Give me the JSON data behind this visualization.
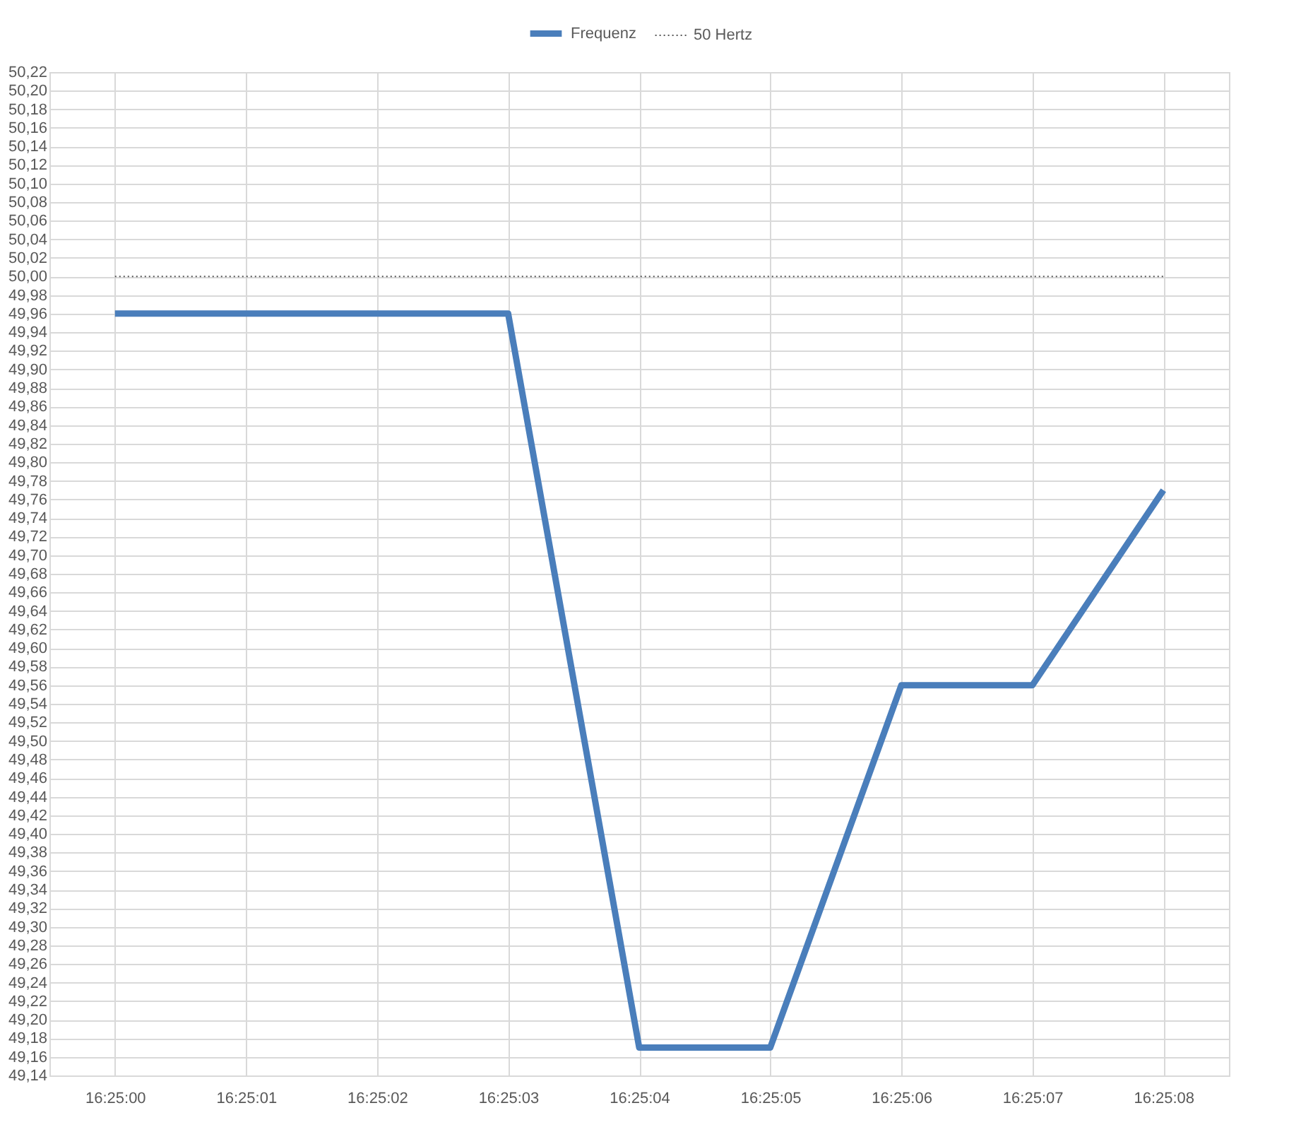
{
  "chart_data": {
    "type": "line",
    "categories": [
      "16:25:00",
      "16:25:01",
      "16:25:02",
      "16:25:03",
      "16:25:04",
      "16:25:05",
      "16:25:06",
      "16:25:07",
      "16:25:08"
    ],
    "series": [
      {
        "name": "Frequenz",
        "color": "#4a7ebb",
        "line_style": "solid",
        "values": [
          49.96,
          49.96,
          49.96,
          49.96,
          49.17,
          49.17,
          49.56,
          49.56,
          49.77
        ]
      },
      {
        "name": "50 Hertz",
        "color": "#595959",
        "line_style": "dotted",
        "values": [
          50.0,
          50.0,
          50.0,
          50.0,
          50.0,
          50.0,
          50.0,
          50.0,
          50.0
        ]
      }
    ],
    "ylim": [
      49.14,
      50.22
    ],
    "yticks": [
      {
        "value": 49.14,
        "label": "49,14"
      },
      {
        "value": 49.16,
        "label": "49,16"
      },
      {
        "value": 49.18,
        "label": "49,18"
      },
      {
        "value": 49.2,
        "label": "49,20"
      },
      {
        "value": 49.22,
        "label": "49,22"
      },
      {
        "value": 49.24,
        "label": "49,24"
      },
      {
        "value": 49.26,
        "label": "49,26"
      },
      {
        "value": 49.28,
        "label": "49,28"
      },
      {
        "value": 49.3,
        "label": "49,30"
      },
      {
        "value": 49.32,
        "label": "49,32"
      },
      {
        "value": 49.34,
        "label": "49,34"
      },
      {
        "value": 49.36,
        "label": "49,36"
      },
      {
        "value": 49.38,
        "label": "49,38"
      },
      {
        "value": 49.4,
        "label": "49,40"
      },
      {
        "value": 49.42,
        "label": "49,42"
      },
      {
        "value": 49.44,
        "label": "49,44"
      },
      {
        "value": 49.46,
        "label": "49,46"
      },
      {
        "value": 49.48,
        "label": "49,48"
      },
      {
        "value": 49.5,
        "label": "49,50"
      },
      {
        "value": 49.52,
        "label": "49,52"
      },
      {
        "value": 49.54,
        "label": "49,54"
      },
      {
        "value": 49.56,
        "label": "49,56"
      },
      {
        "value": 49.58,
        "label": "49,58"
      },
      {
        "value": 49.6,
        "label": "49,60"
      },
      {
        "value": 49.62,
        "label": "49,62"
      },
      {
        "value": 49.64,
        "label": "49,64"
      },
      {
        "value": 49.66,
        "label": "49,66"
      },
      {
        "value": 49.68,
        "label": "49,68"
      },
      {
        "value": 49.7,
        "label": "49,70"
      },
      {
        "value": 49.72,
        "label": "49,72"
      },
      {
        "value": 49.74,
        "label": "49,74"
      },
      {
        "value": 49.76,
        "label": "49,76"
      },
      {
        "value": 49.78,
        "label": "49,78"
      },
      {
        "value": 49.8,
        "label": "49,80"
      },
      {
        "value": 49.82,
        "label": "49,82"
      },
      {
        "value": 49.84,
        "label": "49,84"
      },
      {
        "value": 49.86,
        "label": "49,86"
      },
      {
        "value": 49.88,
        "label": "49,88"
      },
      {
        "value": 49.9,
        "label": "49,90"
      },
      {
        "value": 49.92,
        "label": "49,92"
      },
      {
        "value": 49.94,
        "label": "49,94"
      },
      {
        "value": 49.96,
        "label": "49,96"
      },
      {
        "value": 49.98,
        "label": "49,98"
      },
      {
        "value": 50.0,
        "label": "50,00"
      },
      {
        "value": 50.02,
        "label": "50,02"
      },
      {
        "value": 50.04,
        "label": "50,04"
      },
      {
        "value": 50.06,
        "label": "50,06"
      },
      {
        "value": 50.08,
        "label": "50,08"
      },
      {
        "value": 50.1,
        "label": "50,10"
      },
      {
        "value": 50.12,
        "label": "50,12"
      },
      {
        "value": 50.14,
        "label": "50,14"
      },
      {
        "value": 50.16,
        "label": "50,16"
      },
      {
        "value": 50.18,
        "label": "50,18"
      },
      {
        "value": 50.2,
        "label": "50,20"
      },
      {
        "value": 50.22,
        "label": "50,22"
      }
    ],
    "grid": true,
    "legend": "top",
    "marker": "none"
  }
}
